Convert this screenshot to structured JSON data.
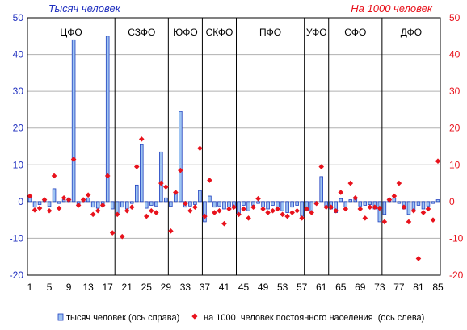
{
  "chart_data": {
    "type": "bar",
    "left_axis_title": "Тысяч человек",
    "right_axis_title": "На 1000 человек",
    "x_ticks": [
      "1",
      "5",
      "9",
      "13",
      "17",
      "21",
      "25",
      "29",
      "33",
      "37",
      "41",
      "45",
      "49",
      "53",
      "57",
      "61",
      "65",
      "69",
      "73",
      "77",
      "81",
      "85"
    ],
    "y_ticks": [
      "-20",
      "-10",
      "0",
      "10",
      "20",
      "30",
      "40",
      "50"
    ],
    "ylim": [
      -20,
      50
    ],
    "xlim": [
      1,
      85
    ],
    "districts": [
      "ЦФО",
      "СЗФО",
      "ЮФО",
      "СКФО",
      "ПФО",
      "УФО",
      "СФО",
      "ДФО"
    ],
    "district_boundaries": [
      18,
      29,
      36,
      43,
      57,
      62,
      73
    ],
    "grid": true,
    "legend_position": "bottom",
    "series": [
      {
        "name": "тысяч человек (ось справа)",
        "kind": "bar",
        "color": "#9ec4f2",
        "edge_color": "#1f3fbf",
        "values": [
          1.2,
          -1.5,
          -0.8,
          0.5,
          -1.3,
          3.5,
          -0.5,
          0.5,
          1.0,
          44.0,
          -1.0,
          0.5,
          1.0,
          -1.5,
          -1.8,
          -1.2,
          45.0,
          -2.0,
          -3.5,
          -1.5,
          -2.0,
          -0.5,
          4.5,
          15.5,
          -1.8,
          -1.0,
          -1.2,
          13.5,
          1.0,
          -1.3,
          2.5,
          24.5,
          -1.5,
          -1.2,
          -0.8,
          3.0,
          -5.5,
          1.5,
          -1.5,
          -1.2,
          -2.0,
          -1.5,
          -1.8,
          -3.5,
          -1.0,
          -2.5,
          -1.0,
          -0.5,
          -1.5,
          -2.0,
          -1.0,
          -1.5,
          -2.5,
          -3.0,
          -1.5,
          -1.0,
          -4.0,
          -2.5,
          -3.0,
          -0.8,
          6.8,
          -1.5,
          -2.0,
          -3.0,
          0.8,
          -1.5,
          0.5,
          0.8,
          -1.2,
          -1.0,
          -0.8,
          -2.0,
          -5.5,
          -3.5,
          0.8,
          1.0,
          -0.5,
          -2.0,
          -3.5,
          -2.5,
          -1.0,
          -2.0,
          -1.2,
          -0.5,
          0.5
        ]
      },
      {
        "name": "на 1000  человек постоянного населения  (ось слева)",
        "kind": "marker",
        "color": "#e8121c",
        "values": [
          1.5,
          -2.3,
          -1.8,
          0.5,
          -2.5,
          7.0,
          -1.8,
          1.0,
          0.5,
          11.5,
          -1.0,
          0.5,
          1.8,
          -3.5,
          -2.5,
          -1.0,
          7.0,
          -8.5,
          -3.5,
          -9.5,
          -2.5,
          -1.5,
          9.5,
          17.0,
          -4.0,
          -2.5,
          -3.0,
          5.0,
          4.0,
          -8.0,
          2.5,
          8.5,
          -0.5,
          -2.5,
          -1.5,
          14.5,
          -4.0,
          5.8,
          -3.0,
          -2.5,
          -6.0,
          -2.0,
          -1.5,
          -3.5,
          -2.0,
          -4.5,
          -1.5,
          0.8,
          -2.0,
          -3.0,
          -2.5,
          -2.0,
          -3.5,
          -4.0,
          -3.0,
          -2.5,
          -4.5,
          -2.0,
          -3.0,
          -0.5,
          9.5,
          -1.5,
          -1.5,
          -2.5,
          2.5,
          -2.0,
          5.0,
          1.0,
          -2.0,
          -4.5,
          -1.5,
          -1.5,
          -1.8,
          -5.5,
          0.5,
          1.5,
          5.0,
          -1.5,
          -5.5,
          -2.5,
          -15.5,
          -3.0,
          -2.0,
          -5.0,
          11.0
        ]
      }
    ]
  }
}
